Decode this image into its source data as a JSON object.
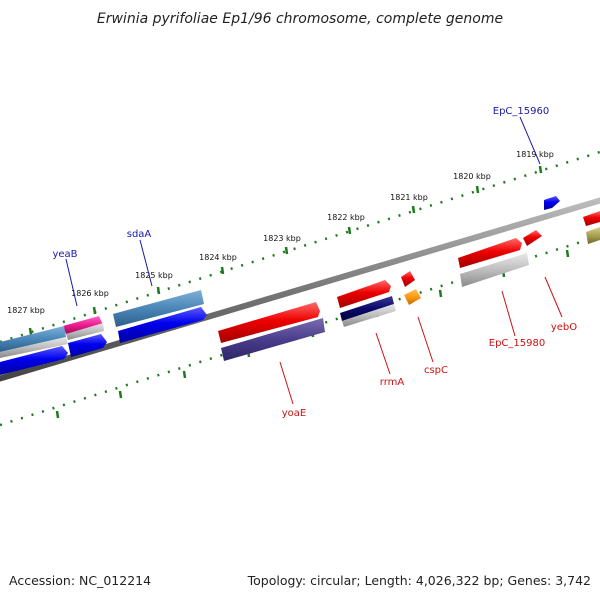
{
  "title": "Erwinia pyrifoliae Ep1/96 chromosome, complete genome",
  "footer": {
    "accession": "Accession: NC_012214",
    "summary": "Topology: circular; Length: 4,026,322 bp; Genes: 3,742"
  },
  "kbp_labels": [
    "1819 kbp",
    "1820 kbp",
    "1821 kbp",
    "1822 kbp",
    "1823 kbp",
    "1824 kbp",
    "1825 kbp",
    "1826 kbp",
    "1827 kbp"
  ],
  "gene_labels_top": [
    "EpC_15960",
    "sdaA",
    "yeaB"
  ],
  "gene_labels_bottom": [
    "EpC_15980",
    "yebO",
    "cspC",
    "rrmA",
    "yoaE"
  ],
  "colors": {
    "label_blue": "#1a1aa8",
    "label_red": "#cc1111",
    "tick_green": "#1f7a1f",
    "backbone": "#888888"
  }
}
